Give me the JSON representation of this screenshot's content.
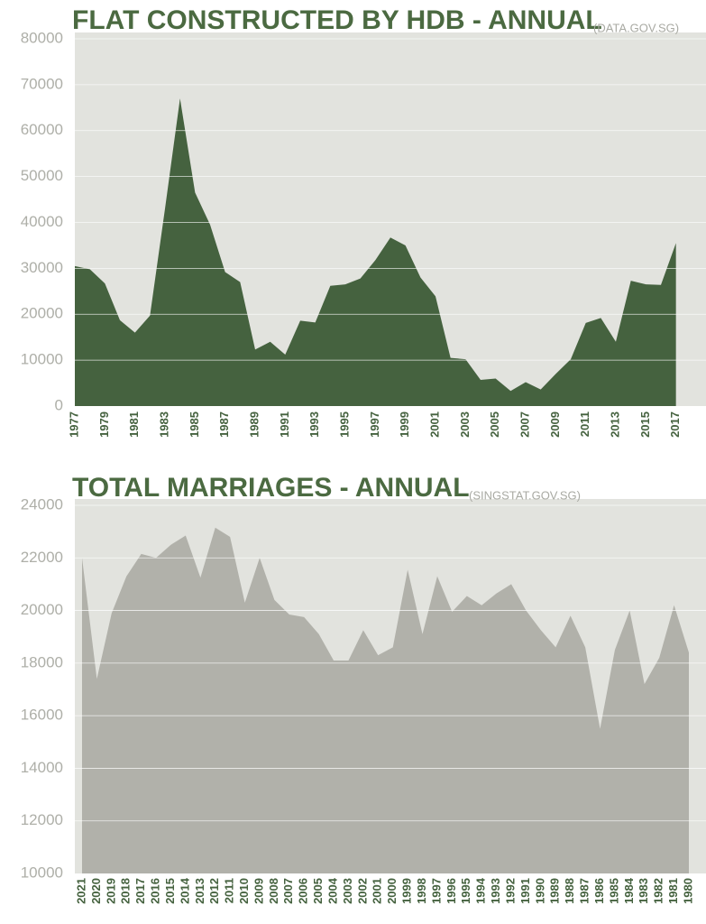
{
  "chart_data": [
    {
      "type": "area",
      "title": "FLAT CONSTRUCTED BY HDB - ANNUAL",
      "subtitle": "(DATA.GOV.SG)",
      "x": [
        1977,
        1978,
        1979,
        1980,
        1981,
        1982,
        1983,
        1984,
        1985,
        1986,
        1987,
        1988,
        1989,
        1990,
        1991,
        1992,
        1993,
        1994,
        1995,
        1996,
        1997,
        1998,
        1999,
        2000,
        2001,
        2002,
        2003,
        2004,
        2005,
        2006,
        2007,
        2008,
        2009,
        2010,
        2011,
        2012,
        2013,
        2014,
        2015,
        2016,
        2017
      ],
      "values": [
        30500,
        29800,
        26700,
        18700,
        16000,
        19700,
        43000,
        67000,
        46500,
        39500,
        29200,
        27000,
        12300,
        14000,
        11200,
        18600,
        18200,
        26200,
        26500,
        27800,
        31800,
        36700,
        35000,
        28000,
        23900,
        10500,
        10200,
        5700,
        6000,
        3300,
        5200,
        3600,
        7000,
        10200,
        18100,
        19200,
        14000,
        27300,
        26500,
        26400,
        35500
      ],
      "color": "#45623f",
      "xlim": [
        1977,
        2019
      ],
      "xticks": [
        1977,
        1979,
        1981,
        1983,
        1985,
        1987,
        1989,
        1991,
        1993,
        1995,
        1997,
        1999,
        2001,
        2003,
        2005,
        2007,
        2009,
        2011,
        2013,
        2015,
        2017
      ],
      "ylim": [
        0,
        80000
      ],
      "yticks": [
        0,
        10000,
        20000,
        30000,
        40000,
        50000,
        60000,
        70000,
        80000
      ],
      "grid": true
    },
    {
      "type": "area",
      "title": "TOTAL MARRIAGES - ANNUAL",
      "subtitle": "(SINGSTAT.GOV.SG)",
      "categories": [
        "2021",
        "2020",
        "2019",
        "2018",
        "2017",
        "2016",
        "2015",
        "2014",
        "2013",
        "2012",
        "2011",
        "2010",
        "2009",
        "2008",
        "2007",
        "2006",
        "2005",
        "2004",
        "2003",
        "2002",
        "2001",
        "2000",
        "1999",
        "1998",
        "1997",
        "1996",
        "1995",
        "1994",
        "1993",
        "1992",
        "1991",
        "1990",
        "1989",
        "1988",
        "1987",
        "1986",
        "1985",
        "1984",
        "1983",
        "1982",
        "1981",
        "1980"
      ],
      "values": [
        22000,
        17400,
        19900,
        21300,
        22150,
        22000,
        22500,
        22850,
        21250,
        23150,
        22800,
        20300,
        22000,
        20400,
        19850,
        19750,
        19100,
        18100,
        18100,
        19250,
        18300,
        18600,
        21550,
        19100,
        21300,
        19950,
        20550,
        20200,
        20650,
        21000,
        20000,
        19250,
        18600,
        19800,
        18600,
        15500,
        18500,
        20000,
        17200,
        18200,
        20200,
        18400
      ],
      "color": "#b1b1aa",
      "ylim": [
        10000,
        24000
      ],
      "yticks": [
        10000,
        12000,
        14000,
        16000,
        18000,
        20000,
        22000,
        24000
      ],
      "grid": true
    }
  ]
}
